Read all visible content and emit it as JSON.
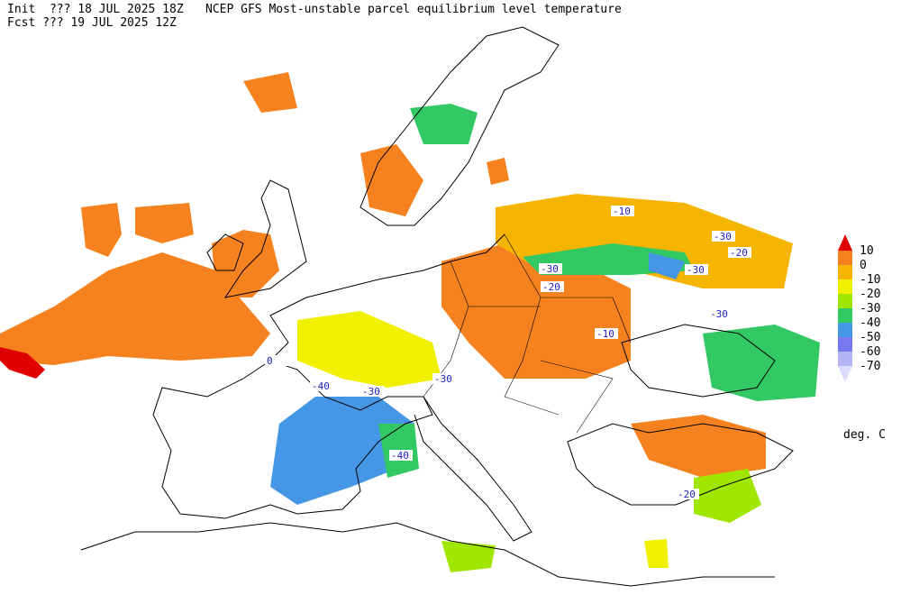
{
  "header": {
    "init": "Init  ??? 18 JUL 2025 18Z",
    "title": "NCEP GFS Most-unstable parcel equilibrium level temperature",
    "fcst": "Fcst ??? 19 JUL 2025 12Z"
  },
  "legend": {
    "levels": [
      10,
      0,
      -10,
      -20,
      -30,
      -40,
      -50,
      -60,
      -70
    ],
    "colors": [
      "#e00000",
      "#f5821e",
      "#f5b400",
      "#f0f000",
      "#a0e600",
      "#32c864",
      "#4696e6",
      "#7878f0",
      "#b4b4f5",
      "#dcdcff"
    ],
    "unit": "deg. C"
  },
  "contour_labels": [
    -10,
    -30,
    -20,
    -30,
    -20,
    -30,
    -30,
    -10,
    0,
    -30,
    -40,
    -30,
    -40,
    -20
  ]
}
